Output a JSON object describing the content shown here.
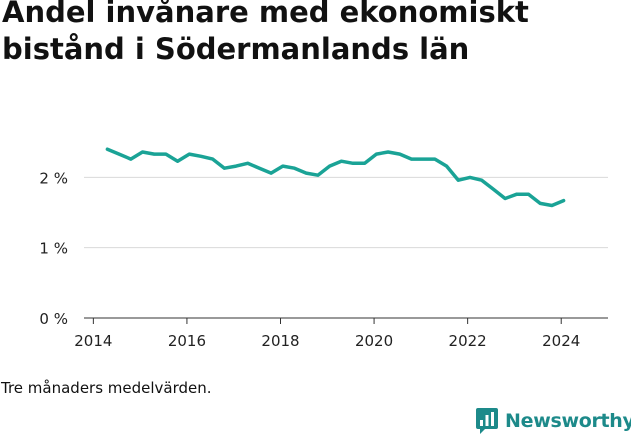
{
  "chart_data": {
    "type": "line",
    "title": "Andel invånare med ekonomiskt bistånd i Södermanlands län",
    "xlabel": "",
    "ylabel": "",
    "xlim": [
      2013.8,
      2025.0
    ],
    "ylim": [
      0,
      0.031
    ],
    "yticks": [
      0,
      0.01,
      0.02
    ],
    "ytick_labels": [
      "0 %",
      "1 %",
      "2 %"
    ],
    "xticks": [
      2014,
      2016,
      2018,
      2020,
      2022,
      2024
    ],
    "xtick_labels": [
      "2014",
      "2016",
      "2018",
      "2020",
      "2022",
      "2024"
    ],
    "grid": true,
    "legend": "none",
    "line_color": "#1aa396",
    "series": [
      {
        "x": [
          2014.3,
          2014.55,
          2014.8,
          2015.05,
          2015.3,
          2015.55,
          2015.8,
          2016.05,
          2016.3,
          2016.55,
          2016.8,
          2017.05,
          2017.3,
          2017.55,
          2017.8,
          2018.05,
          2018.3,
          2018.55,
          2018.8,
          2019.05,
          2019.3,
          2019.55,
          2019.8,
          2020.05,
          2020.3,
          2020.55,
          2020.8,
          2021.05,
          2021.3,
          2021.55,
          2021.8,
          2022.05,
          2022.3,
          2022.55,
          2022.8,
          2023.05,
          2023.3,
          2023.55,
          2023.8,
          2024.05
        ],
        "values": [
          0.024,
          0.0233,
          0.0226,
          0.0236,
          0.0233,
          0.0233,
          0.0223,
          0.0233,
          0.023,
          0.0226,
          0.0213,
          0.0216,
          0.022,
          0.0213,
          0.0206,
          0.0216,
          0.0213,
          0.0206,
          0.0203,
          0.0216,
          0.0223,
          0.022,
          0.022,
          0.0233,
          0.0236,
          0.0233,
          0.0226,
          0.0226,
          0.0226,
          0.0216,
          0.0196,
          0.02,
          0.0196,
          0.0183,
          0.017,
          0.0176,
          0.0176,
          0.0163,
          0.016,
          0.0167
        ]
      }
    ]
  },
  "footnote": "Tre månaders medelvärden.",
  "brand": {
    "name": "Newsworthy",
    "color": "#1d8a8a",
    "icon": "newsworthy-logo-icon"
  }
}
